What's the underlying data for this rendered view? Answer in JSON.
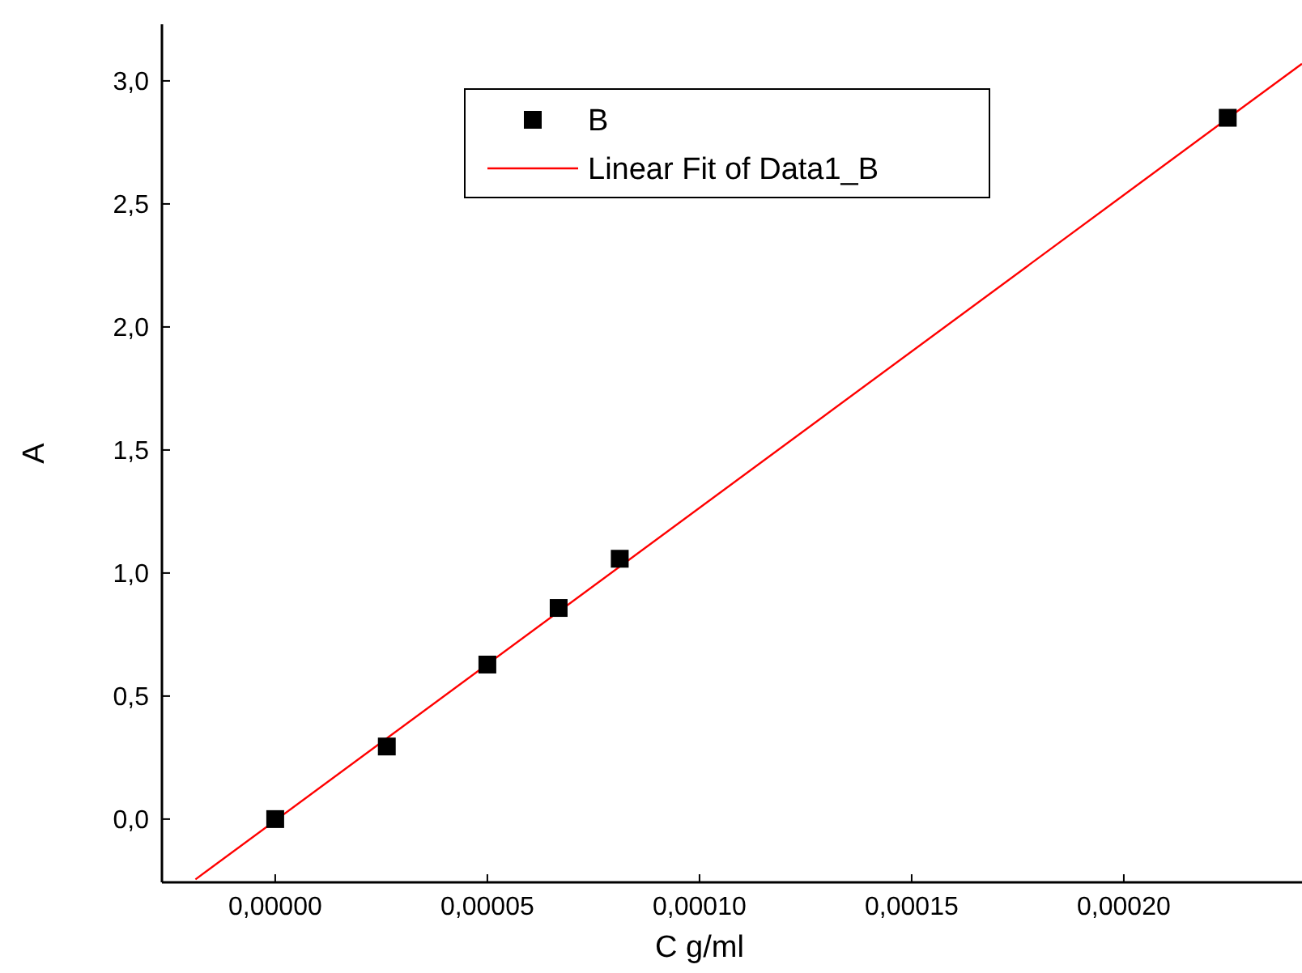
{
  "chart_data": {
    "type": "scatter",
    "xlabel": "C g/ml",
    "ylabel": "A",
    "legend": "top",
    "grid": false,
    "xlim": [
      -2.67e-05,
      0.000242
    ],
    "ylim": [
      -0.257,
      3.23
    ],
    "xticks": [
      {
        "value": 0,
        "label": "0,00000"
      },
      {
        "value": 5e-05,
        "label": "0,00005"
      },
      {
        "value": 0.0001,
        "label": "0,00010"
      },
      {
        "value": 0.00015,
        "label": "0,00015"
      },
      {
        "value": 0.0002,
        "label": "0,00020"
      }
    ],
    "yticks": [
      {
        "value": 0,
        "label": "0,0"
      },
      {
        "value": 0.5,
        "label": "0,5"
      },
      {
        "value": 1,
        "label": "1,0"
      },
      {
        "value": 1.5,
        "label": "1,5"
      },
      {
        "value": 2,
        "label": "2,0"
      },
      {
        "value": 2.5,
        "label": "2,5"
      },
      {
        "value": 3,
        "label": "3,0"
      }
    ],
    "series": [
      {
        "name": "B",
        "marker": "square",
        "color": "#000000",
        "x": [
          0,
          2.63e-05,
          5e-05,
          6.68e-05,
          8.12e-05,
          0.0002245
        ],
        "values": [
          0,
          0.295,
          0.628,
          0.858,
          1.058,
          2.85
        ]
      },
      {
        "name": "Linear Fit of Data1_B",
        "type": "line",
        "color": "#ff0000",
        "line_style": "solid",
        "x": [
          -1.88e-05,
          0.000242
        ],
        "values": [
          -0.245,
          3.07
        ]
      }
    ]
  }
}
